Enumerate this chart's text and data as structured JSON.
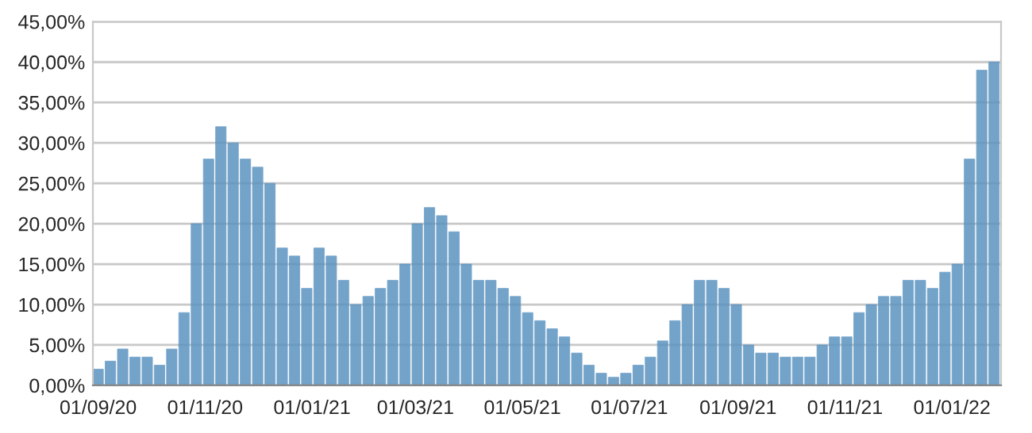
{
  "chart_data": {
    "type": "bar",
    "color": "#5b93c0",
    "grid": "y",
    "x": [
      "2020-09-01",
      "2020-09-08",
      "2020-09-15",
      "2020-09-22",
      "2020-09-29",
      "2020-10-06",
      "2020-10-13",
      "2020-10-20",
      "2020-10-27",
      "2020-11-03",
      "2020-11-10",
      "2020-11-17",
      "2020-11-24",
      "2020-12-01",
      "2020-12-08",
      "2020-12-15",
      "2020-12-22",
      "2020-12-29",
      "2021-01-05",
      "2021-01-12",
      "2021-01-19",
      "2021-01-26",
      "2021-02-02",
      "2021-02-09",
      "2021-02-16",
      "2021-02-23",
      "2021-03-02",
      "2021-03-09",
      "2021-03-16",
      "2021-03-23",
      "2021-03-30",
      "2021-04-06",
      "2021-04-13",
      "2021-04-20",
      "2021-04-27",
      "2021-05-04",
      "2021-05-11",
      "2021-05-18",
      "2021-05-25",
      "2021-06-01",
      "2021-06-08",
      "2021-06-15",
      "2021-06-22",
      "2021-06-29",
      "2021-07-06",
      "2021-07-13",
      "2021-07-20",
      "2021-07-27",
      "2021-08-03",
      "2021-08-10",
      "2021-08-17",
      "2021-08-24",
      "2021-08-31",
      "2021-09-07",
      "2021-09-14",
      "2021-09-21",
      "2021-09-28",
      "2021-10-05",
      "2021-10-12",
      "2021-10-19",
      "2021-10-26",
      "2021-11-02",
      "2021-11-09",
      "2021-11-16",
      "2021-11-23",
      "2021-11-30",
      "2021-12-07",
      "2021-12-14",
      "2021-12-21",
      "2021-12-28",
      "2022-01-04",
      "2022-01-11",
      "2022-01-18",
      "2022-01-25"
    ],
    "values": [
      2,
      3,
      4.5,
      3.5,
      3.5,
      2.5,
      4.5,
      9,
      20,
      28,
      32,
      30,
      28,
      27,
      25,
      17,
      16,
      12,
      17,
      16,
      13,
      10,
      11,
      12,
      13,
      15,
      20,
      22,
      21,
      19,
      15,
      13,
      13,
      12,
      11,
      9,
      8,
      7,
      6,
      4,
      2.5,
      1.5,
      1,
      1.5,
      2.5,
      3.5,
      5.5,
      8,
      10,
      13,
      13,
      12,
      10,
      5,
      4,
      4,
      3.5,
      3.5,
      3.5,
      5,
      6,
      6,
      9,
      10,
      11,
      11,
      13,
      13,
      12,
      14,
      15,
      28,
      39,
      40
    ],
    "xlim": [
      "2020-08-29",
      "2022-01-29"
    ],
    "xticks": [
      {
        "value": "2020-09-01",
        "label": "01/09/20"
      },
      {
        "value": "2020-11-01",
        "label": "01/11/20"
      },
      {
        "value": "2021-01-01",
        "label": "01/01/21"
      },
      {
        "value": "2021-03-01",
        "label": "01/03/21"
      },
      {
        "value": "2021-05-01",
        "label": "01/05/21"
      },
      {
        "value": "2021-07-01",
        "label": "01/07/21"
      },
      {
        "value": "2021-09-01",
        "label": "01/09/21"
      },
      {
        "value": "2021-11-01",
        "label": "01/11/21"
      },
      {
        "value": "2022-01-01",
        "label": "01/01/22"
      }
    ],
    "ylim": [
      0,
      45
    ],
    "yticks": [
      {
        "value": 0,
        "label": "0,00%"
      },
      {
        "value": 5,
        "label": "5,00%"
      },
      {
        "value": 10,
        "label": "10,00%"
      },
      {
        "value": 15,
        "label": "15,00%"
      },
      {
        "value": 20,
        "label": "20,00%"
      },
      {
        "value": 25,
        "label": "25,00%"
      },
      {
        "value": 30,
        "label": "30,00%"
      },
      {
        "value": 35,
        "label": "35,00%"
      },
      {
        "value": 40,
        "label": "40,00%"
      },
      {
        "value": 45,
        "label": "45,00%"
      }
    ]
  }
}
